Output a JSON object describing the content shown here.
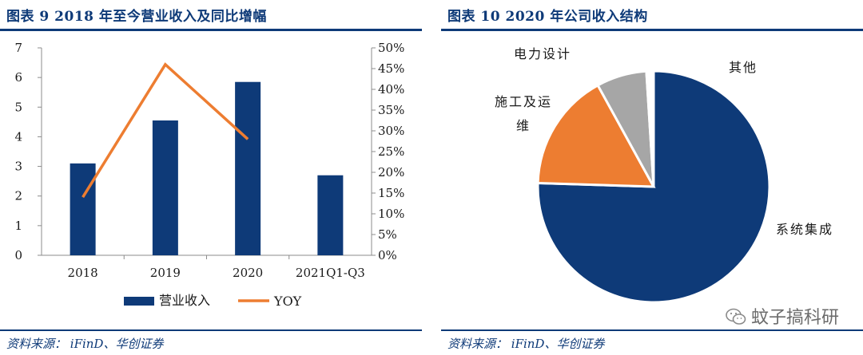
{
  "left": {
    "title": "图表 9 2018 年至今营业收入及同比增幅",
    "source": "资料来源： iFinD、华创证券"
  },
  "right": {
    "title": "图表 10 2020 年公司收入结构",
    "source": "资料来源： iFinD、华创证券"
  },
  "watermark": "蚊子搞科研",
  "colors": {
    "navy": "#0e3a78",
    "orange": "#ed7d31",
    "gray": "#a6a6a6",
    "text": "#1a1a1a"
  },
  "chart_data": [
    {
      "type": "bar",
      "categories": [
        "2018",
        "2019",
        "2020",
        "2021Q1-Q3"
      ],
      "series": [
        {
          "name": "营业收入",
          "type": "bar",
          "axis": "left",
          "values": [
            3.1,
            4.55,
            5.85,
            2.7
          ]
        },
        {
          "name": "YOY",
          "type": "line",
          "axis": "right",
          "values": [
            0.14,
            0.46,
            0.28,
            null
          ]
        }
      ],
      "ylim": [
        0,
        7
      ],
      "yticks": [
        0,
        1,
        2,
        3,
        4,
        5,
        6,
        7
      ],
      "y2lim": [
        0,
        0.5
      ],
      "y2ticks": [
        "0%",
        "5%",
        "10%",
        "15%",
        "20%",
        "25%",
        "30%",
        "35%",
        "40%",
        "45%",
        "50%"
      ],
      "legend": "bottom"
    },
    {
      "type": "pie",
      "labels": [
        "系统集成",
        "施工及运维",
        "电力设计",
        "其他"
      ],
      "label_lines": [
        [
          "系统集成"
        ],
        [
          "施工及运",
          "维"
        ],
        [
          "电力设计"
        ],
        [
          "其他"
        ]
      ],
      "values": [
        75.5,
        16.5,
        7.0,
        1.0
      ],
      "start": "top, clockwise"
    }
  ]
}
